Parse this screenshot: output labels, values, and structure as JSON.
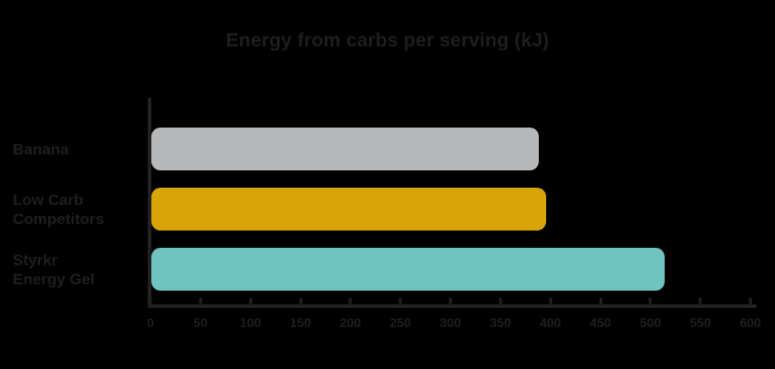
{
  "chart_data": {
    "type": "bar",
    "orientation": "horizontal",
    "title": "Energy from carbs per serving (kJ)",
    "categories": [
      [
        "Banana"
      ],
      [
        "Low Carb",
        "Competitors"
      ],
      [
        "Styrkr",
        "Energy Gel"
      ]
    ],
    "values": [
      388,
      396,
      514
    ],
    "bar_colors": [
      "#b7b8b9",
      "#d8a508",
      "#6fc4c0"
    ],
    "xlim": [
      0,
      600
    ],
    "x_ticks": [
      0,
      50,
      100,
      150,
      200,
      250,
      300,
      350,
      400,
      450,
      500,
      550,
      600
    ],
    "xlabel": "",
    "ylabel": "",
    "grid": false,
    "legend": false,
    "colors": {
      "background": "#000000",
      "text": "#1e1e1e",
      "axis": "#212121"
    }
  }
}
